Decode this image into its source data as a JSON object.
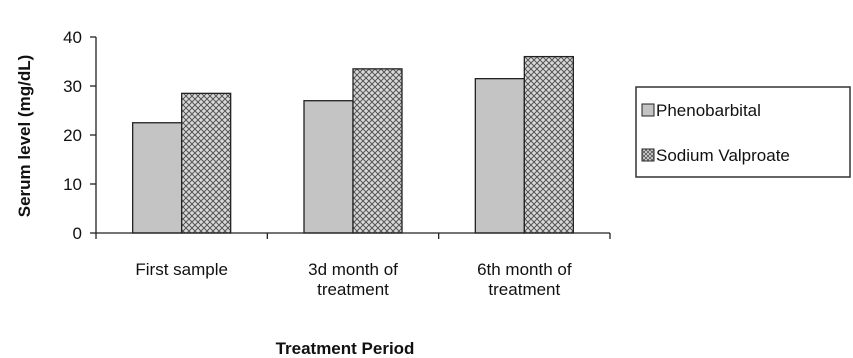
{
  "chart_data": {
    "type": "bar",
    "title": "",
    "xlabel": "Treatment Period",
    "ylabel": "Serum level (mg/dL)",
    "ylim": [
      0,
      40
    ],
    "yticks": [
      "0",
      "10",
      "20",
      "30",
      "40"
    ],
    "categories": [
      [
        "First sample"
      ],
      [
        "3d month of",
        "treatment"
      ],
      [
        "6th month of",
        "treatment"
      ]
    ],
    "series": [
      {
        "name": "Phenobarbital",
        "values": [
          22.5,
          27,
          31.5
        ],
        "color": "#c4c4c4",
        "pattern": "solid"
      },
      {
        "name": "Sodium Valproate",
        "values": [
          28.5,
          33.5,
          36
        ],
        "color": "#9a9a9a",
        "pattern": "crosshatch"
      }
    ],
    "grid": false,
    "legend": "right"
  }
}
